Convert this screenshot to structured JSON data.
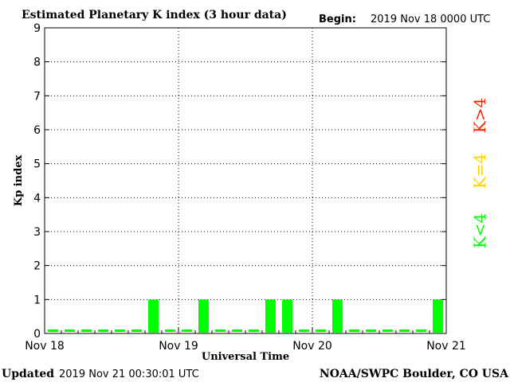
{
  "header": {
    "title": "Estimated Planetary K index (3 hour data)",
    "begin_label": "Begin:",
    "begin_value": "2019 Nov 18 0000 UTC"
  },
  "footer": {
    "updated_label": "Updated",
    "updated_value": "2019 Nov 21 00:30:01 UTC",
    "credit": "NOAA/SWPC Boulder, CO USA"
  },
  "legend": [
    {
      "label": "K>4",
      "color": "#ff2000"
    },
    {
      "label": "K=4",
      "color": "#ffd000"
    },
    {
      "label": "K<4",
      "color": "#00ff00"
    }
  ],
  "chart_data": {
    "type": "bar",
    "title": "Estimated Planetary K index (3 hour data)",
    "xlabel": "Universal Time",
    "ylabel": "Kp index",
    "x_tick_labels": [
      "Nov 18",
      "Nov 19",
      "Nov 20",
      "Nov 21"
    ],
    "y_tick_labels": [
      "0",
      "1",
      "2",
      "3",
      "4",
      "5",
      "6",
      "7",
      "8",
      "9"
    ],
    "ylim": [
      0,
      9
    ],
    "grid": true,
    "bar_color": "#00ff00",
    "values": [
      0,
      0,
      0,
      0,
      0,
      0,
      1,
      0,
      0,
      1,
      0,
      0,
      0,
      1,
      1,
      0,
      0,
      1,
      0,
      0,
      0,
      0,
      0,
      1
    ]
  }
}
